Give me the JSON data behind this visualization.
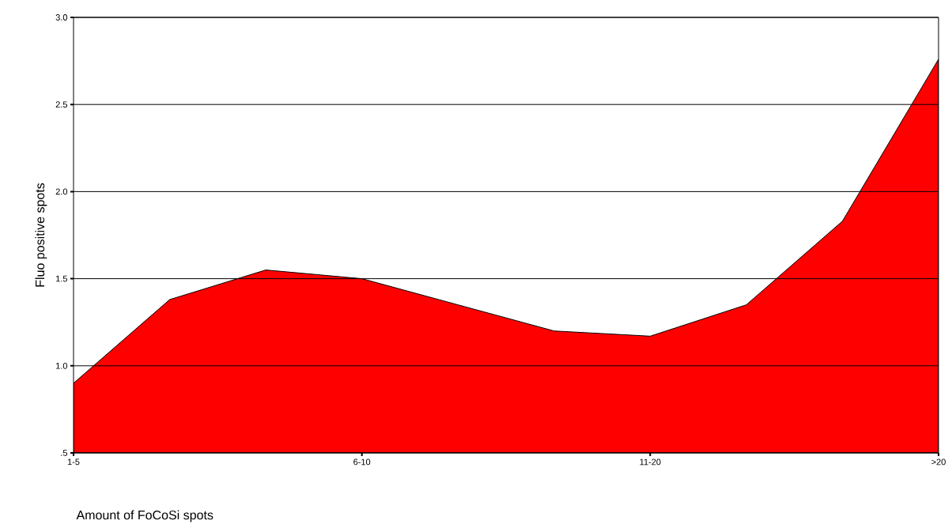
{
  "chart_data": {
    "type": "area",
    "xlabel": "Amount of FoCoSi spots",
    "ylabel": "Fluo positive spots",
    "categories": [
      "1-5",
      null,
      null,
      "6-10",
      null,
      null,
      "11-20",
      null,
      null,
      ">20"
    ],
    "values": [
      0.9,
      1.38,
      1.55,
      1.5,
      1.35,
      1.2,
      1.17,
      1.35,
      1.83,
      2.76
    ],
    "color": "#ff0000",
    "ylim": [
      0.5,
      3.0
    ],
    "yticks": [
      {
        "value": 0.5,
        "label": ".5"
      },
      {
        "value": 1.0,
        "label": "1.0"
      },
      {
        "value": 1.5,
        "label": "1.5"
      },
      {
        "value": 2.0,
        "label": "2.0"
      },
      {
        "value": 2.5,
        "label": "2.5"
      },
      {
        "value": 3.0,
        "label": "3.0"
      }
    ],
    "grid": "y"
  }
}
